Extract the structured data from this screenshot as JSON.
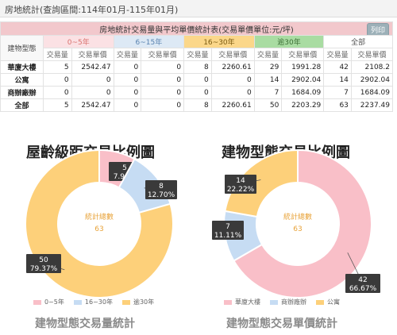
{
  "header": {
    "title": "房地統計(查詢區間:114年01月-115年01月)"
  },
  "table": {
    "caption": "房地統計交易量與平均單價統計表(交易單價單位:元/坪)",
    "print_label": "列印",
    "row_header": "建物型態",
    "groups": [
      "0~5年",
      "6~15年",
      "16~30年",
      "逾30年",
      "全部"
    ],
    "sub_headers": [
      "交易量",
      "交易單價"
    ],
    "rows": [
      {
        "name": "華廈大樓",
        "cells": [
          "5",
          "2542.47",
          "0",
          "0",
          "8",
          "2260.61",
          "29",
          "1991.28",
          "42",
          "2108.2"
        ]
      },
      {
        "name": "公寓",
        "cells": [
          "0",
          "0",
          "0",
          "0",
          "0",
          "0",
          "14",
          "2902.04",
          "14",
          "2902.04"
        ]
      },
      {
        "name": "商辦廠辦",
        "cells": [
          "0",
          "0",
          "0",
          "0",
          "0",
          "0",
          "7",
          "1684.09",
          "7",
          "1684.09"
        ]
      },
      {
        "name": "全部",
        "cells": [
          "5",
          "2542.47",
          "0",
          "0",
          "8",
          "2260.61",
          "50",
          "2203.29",
          "63",
          "2237.49"
        ]
      }
    ]
  },
  "colors": {
    "pink": "#f9bfc8",
    "blue": "#c6dcf3",
    "yellow": "#fdd07a",
    "callout": "#3a3a3a",
    "center_label": "#e8a33a"
  },
  "chart_data": [
    {
      "type": "pie",
      "title": "屋齡級距交易比例圖",
      "subtitle": "建物型態交易量統計",
      "center_label": "統計總數",
      "center_value": "63",
      "slices": [
        {
          "name": "0~5年",
          "value": 5,
          "percent": "7.94%",
          "color": "#f9bfc8"
        },
        {
          "name": "16~30年",
          "value": 8,
          "percent": "12.70%",
          "color": "#c6dcf3"
        },
        {
          "name": "逾30年",
          "value": 50,
          "percent": "79.37%",
          "color": "#fdd07a"
        }
      ],
      "legend": [
        "0~5年",
        "16~30年",
        "逾30年"
      ],
      "legend_placement": "bottom"
    },
    {
      "type": "pie",
      "title": "建物型態交易比例圖",
      "subtitle": "建物型態交易單價統計",
      "center_label": "統計總數",
      "center_value": "63",
      "slices": [
        {
          "name": "華廈大樓",
          "value": 42,
          "percent": "66.67%",
          "color": "#f9bfc8"
        },
        {
          "name": "商辦廠辦",
          "value": 7,
          "percent": "11.11%",
          "color": "#c6dcf3"
        },
        {
          "name": "公寓",
          "value": 14,
          "percent": "22.22%",
          "color": "#fdd07a"
        }
      ],
      "legend": [
        "華廈大樓",
        "商辦廠辦",
        "公寓"
      ],
      "legend_placement": "bottom"
    }
  ]
}
